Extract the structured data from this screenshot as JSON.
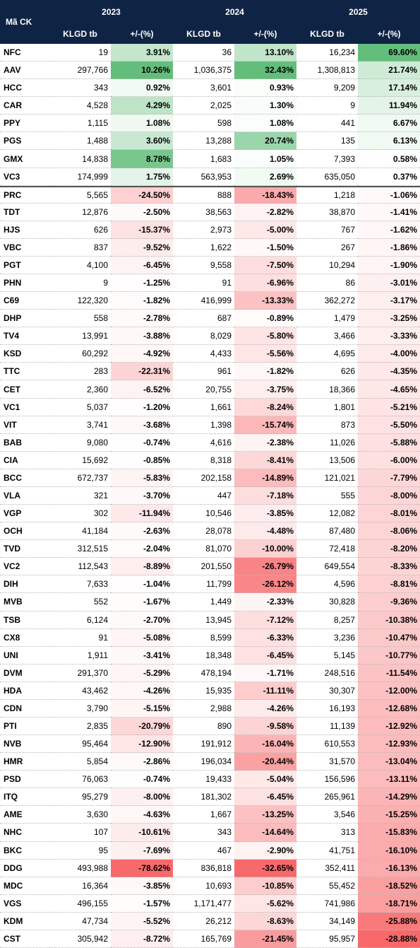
{
  "header": {
    "first": "Mã CK",
    "years": [
      "2023",
      "2024",
      "2025"
    ],
    "subheaders": [
      "KLGD tb",
      "+/-(%)",
      "KLGD tb",
      "+/-(%)",
      "KLGD tb",
      "+/-(%)"
    ]
  },
  "table": {
    "rows": [
      [
        "NFC",
        "19",
        "3.91%",
        "36",
        "13.10%",
        "16,234",
        "69.60%"
      ],
      [
        "AAV",
        "297,766",
        "10.26%",
        "1,036,375",
        "32.43%",
        "1,308,813",
        "21.74%"
      ],
      [
        "HCC",
        "343",
        "0.92%",
        "3,601",
        "0.93%",
        "9,209",
        "17.14%"
      ],
      [
        "CAR",
        "4,528",
        "4.29%",
        "2,025",
        "1.30%",
        "9",
        "11.94%"
      ],
      [
        "PPY",
        "1,115",
        "1.08%",
        "598",
        "1.08%",
        "441",
        "6.67%"
      ],
      [
        "PGS",
        "1,488",
        "3.60%",
        "13,288",
        "20.74%",
        "135",
        "6.13%"
      ],
      [
        "GMX",
        "14,838",
        "8.78%",
        "1,683",
        "1.05%",
        "7,393",
        "0.58%"
      ],
      [
        "VC3",
        "174,999",
        "1.75%",
        "563,953",
        "2.69%",
        "635,050",
        "0.37%"
      ],
      [
        "PRC",
        "5,565",
        "-24.50%",
        "888",
        "-18.43%",
        "1,218",
        "-1.06%"
      ],
      [
        "TDT",
        "12,876",
        "-2.50%",
        "38,563",
        "-2.82%",
        "38,870",
        "-1.41%"
      ],
      [
        "HJS",
        "626",
        "-15.37%",
        "2,973",
        "-5.00%",
        "767",
        "-1.62%"
      ],
      [
        "VBC",
        "837",
        "-9.52%",
        "1,622",
        "-1.50%",
        "267",
        "-1.86%"
      ],
      [
        "PGT",
        "4,100",
        "-6.45%",
        "9,558",
        "-7.50%",
        "10,294",
        "-1.90%"
      ],
      [
        "PHN",
        "9",
        "-1.25%",
        "91",
        "-6.96%",
        "86",
        "-3.01%"
      ],
      [
        "C69",
        "122,320",
        "-1.82%",
        "416,999",
        "-13.33%",
        "362,272",
        "-3.17%"
      ],
      [
        "DHP",
        "558",
        "-2.78%",
        "687",
        "-0.89%",
        "1,479",
        "-3.25%"
      ],
      [
        "TV4",
        "13,991",
        "-3.88%",
        "8,029",
        "-5.80%",
        "3,466",
        "-3.33%"
      ],
      [
        "KSD",
        "60,292",
        "-4.92%",
        "4,433",
        "-5.56%",
        "4,695",
        "-4.00%"
      ],
      [
        "TTC",
        "283",
        "-22.31%",
        "961",
        "-1.82%",
        "626",
        "-4.35%"
      ],
      [
        "CET",
        "2,360",
        "-6.52%",
        "20,755",
        "-3.75%",
        "18,366",
        "-4.65%"
      ],
      [
        "VC1",
        "5,037",
        "-1.20%",
        "1,661",
        "-8.24%",
        "1,801",
        "-5.21%"
      ],
      [
        "VIT",
        "3,741",
        "-3.68%",
        "1,398",
        "-15.74%",
        "873",
        "-5.50%"
      ],
      [
        "BAB",
        "9,080",
        "-0.74%",
        "4,616",
        "-2.38%",
        "11,026",
        "-5.88%"
      ],
      [
        "CIA",
        "15,692",
        "-0.85%",
        "8,318",
        "-8.41%",
        "13,506",
        "-6.00%"
      ],
      [
        "BCC",
        "672,737",
        "-5.83%",
        "202,158",
        "-14.89%",
        "121,021",
        "-7.79%"
      ],
      [
        "VLA",
        "321",
        "-3.70%",
        "447",
        "-7.18%",
        "555",
        "-8.00%"
      ],
      [
        "VGP",
        "302",
        "-11.94%",
        "10,546",
        "-3.85%",
        "12,082",
        "-8.01%"
      ],
      [
        "OCH",
        "41,184",
        "-2.63%",
        "28,078",
        "-4.48%",
        "87,480",
        "-8.06%"
      ],
      [
        "TVD",
        "312,515",
        "-2.04%",
        "81,070",
        "-10.00%",
        "72,418",
        "-8.20%"
      ],
      [
        "VC2",
        "112,543",
        "-8.89%",
        "201,550",
        "-26.79%",
        "649,554",
        "-8.33%"
      ],
      [
        "DIH",
        "7,633",
        "-1.04%",
        "11,799",
        "-26.12%",
        "4,596",
        "-8.81%"
      ],
      [
        "MVB",
        "552",
        "-1.67%",
        "1,449",
        "-2.33%",
        "30,828",
        "-9.36%"
      ],
      [
        "TSB",
        "6,124",
        "-2.70%",
        "13,945",
        "-7.12%",
        "8,257",
        "-10.38%"
      ],
      [
        "CX8",
        "91",
        "-5.08%",
        "8,599",
        "-6.33%",
        "3,236",
        "-10.47%"
      ],
      [
        "UNI",
        "1,911",
        "-3.41%",
        "18,348",
        "-6.45%",
        "5,145",
        "-10.77%"
      ],
      [
        "DVM",
        "291,370",
        "-5.29%",
        "478,194",
        "-1.71%",
        "248,516",
        "-11.54%"
      ],
      [
        "HDA",
        "43,462",
        "-4.26%",
        "15,935",
        "-11.11%",
        "30,307",
        "-12.00%"
      ],
      [
        "CDN",
        "3,790",
        "-5.15%",
        "2,988",
        "-4.26%",
        "16,193",
        "-12.68%"
      ],
      [
        "PTI",
        "2,835",
        "-20.79%",
        "890",
        "-9.58%",
        "11,139",
        "-12.92%"
      ],
      [
        "NVB",
        "95,464",
        "-12.90%",
        "191,912",
        "-16.04%",
        "610,553",
        "-12.93%"
      ],
      [
        "HMR",
        "5,854",
        "-2.86%",
        "196,034",
        "-20.44%",
        "31,570",
        "-13.04%"
      ],
      [
        "PSD",
        "76,063",
        "-0.74%",
        "19,433",
        "-5.04%",
        "156,596",
        "-13.11%"
      ],
      [
        "ITQ",
        "95,279",
        "-8.00%",
        "181,302",
        "-6.45%",
        "265,961",
        "-14.29%"
      ],
      [
        "AME",
        "3,630",
        "-4.63%",
        "1,667",
        "-13.25%",
        "3,546",
        "-15.25%"
      ],
      [
        "NHC",
        "107",
        "-10.61%",
        "343",
        "-14.64%",
        "313",
        "-15.83%"
      ],
      [
        "BKC",
        "95",
        "-7.69%",
        "467",
        "-2.90%",
        "41,751",
        "-16.10%"
      ],
      [
        "DDG",
        "493,988",
        "-78.62%",
        "836,818",
        "-32.65%",
        "352,411",
        "-16.13%"
      ],
      [
        "MDC",
        "16,364",
        "-3.85%",
        "10,693",
        "-10.85%",
        "55,452",
        "-18.52%"
      ],
      [
        "VGS",
        "496,155",
        "-1.57%",
        "1,171,477",
        "-5.62%",
        "741,986",
        "-18.71%"
      ],
      [
        "KDM",
        "47,734",
        "-5.52%",
        "26,212",
        "-8.63%",
        "34,149",
        "-25.88%"
      ],
      [
        "CST",
        "305,942",
        "-8.72%",
        "165,769",
        "-21.45%",
        "95,957",
        "-28.88%"
      ]
    ]
  }
}
